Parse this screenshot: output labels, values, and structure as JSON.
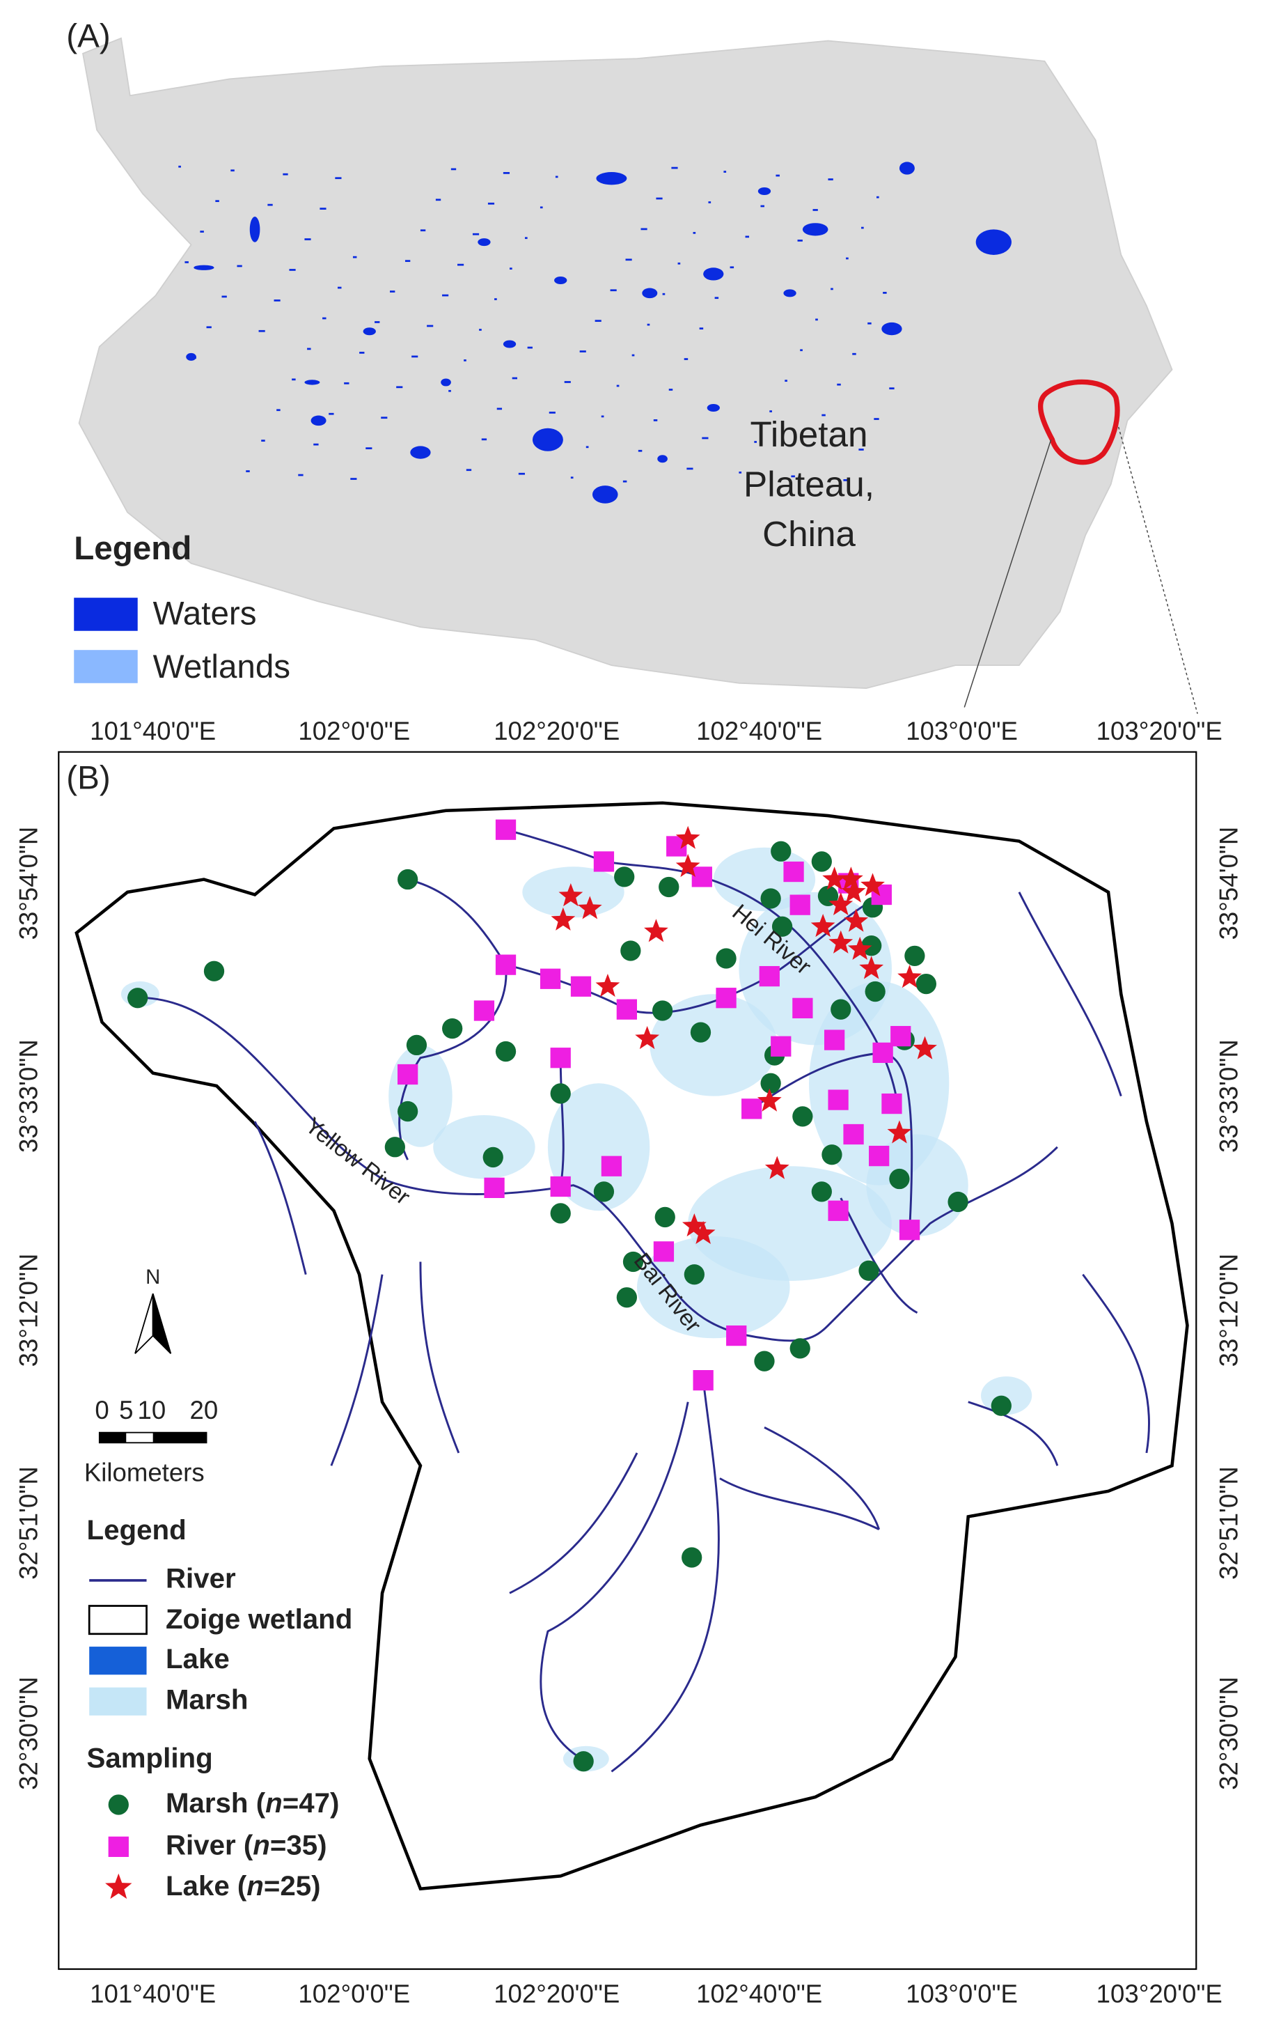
{
  "panel_a": {
    "label": "(A)",
    "place": [
      "Tibetan",
      "Plateau,",
      "China"
    ],
    "legend": {
      "title": "Legend",
      "items": [
        "Waters",
        "Wetlands"
      ]
    }
  },
  "panel_b": {
    "label": "(B)",
    "rivers": [
      "Yellow River",
      "Hei River",
      "Bai River"
    ],
    "north": "N",
    "scale": {
      "ticks": [
        "0",
        "5",
        "10",
        "20"
      ],
      "unit": "Kilometers"
    },
    "legend": {
      "title": "Legend",
      "items": [
        "River",
        "Zoige wetland",
        "Lake",
        "Marsh"
      ]
    },
    "sampling": {
      "title": "Sampling",
      "items": [
        [
          "Marsh (",
          "n",
          "=47)"
        ],
        [
          "River (",
          "n",
          "=35)"
        ],
        [
          "Lake (",
          "n",
          "=25)"
        ]
      ]
    }
  },
  "longitude_labels": [
    "101°40'0\"E",
    "102°0'0\"E",
    "102°20'0\"E",
    "102°40'0\"E",
    "103°0'0\"E",
    "103°20'0\"E"
  ],
  "latitude_labels": [
    "33°54'0\"N",
    "33°33'0\"N",
    "33°12'0\"N",
    "32°51'0\"N",
    "32°30'0\"N"
  ]
}
